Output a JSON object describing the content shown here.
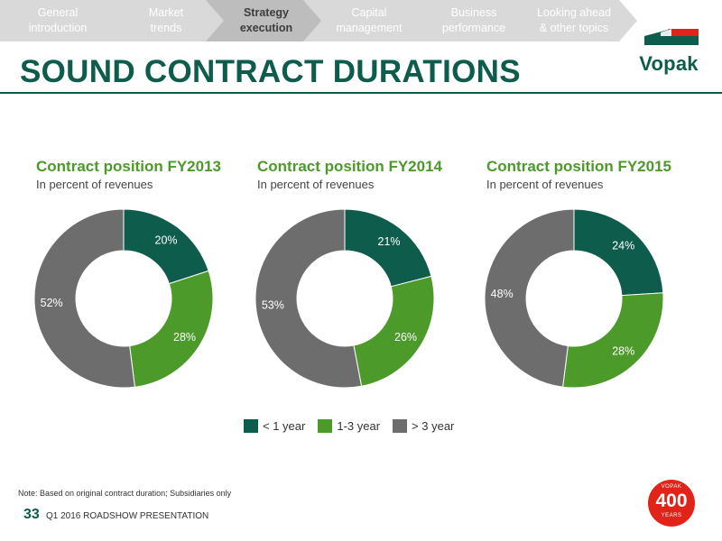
{
  "nav": {
    "items": [
      {
        "label": "General\nintroduction",
        "active": false
      },
      {
        "label": "Market\ntrends",
        "active": false
      },
      {
        "label": "Strategy\nexecution",
        "active": true
      },
      {
        "label": "Capital\nmanagement",
        "active": false
      },
      {
        "label": "Business\nperformance",
        "active": false
      },
      {
        "label": "Looking ahead\n& other topics",
        "active": false
      }
    ]
  },
  "page_title": "SOUND CONTRACT DURATIONS",
  "logo": {
    "word": "Vopak"
  },
  "colors": {
    "brand_green": "#0e5c4c",
    "accent_green": "#4c9a2a",
    "gray": "#6d6d6d",
    "badge_red": "#e2231a"
  },
  "legend": [
    {
      "label": "< 1 year",
      "color": "#0e5c4c"
    },
    {
      "label": "1-3 year",
      "color": "#4c9a2a"
    },
    {
      "label": "> 3 year",
      "color": "#6d6d6d"
    }
  ],
  "chart_data": [
    {
      "type": "pie",
      "title": "Contract position FY2013",
      "subtitle": "In percent of revenues",
      "categories": [
        "< 1 year",
        "1-3 year",
        "> 3 year"
      ],
      "values": [
        20,
        28,
        52
      ],
      "labels": [
        "20%",
        "28%",
        "52%"
      ],
      "colors": [
        "#0e5c4c",
        "#4c9a2a",
        "#6d6d6d"
      ]
    },
    {
      "type": "pie",
      "title": "Contract position FY2014",
      "subtitle": "In percent of revenues",
      "categories": [
        "< 1 year",
        "1-3 year",
        "> 3 year"
      ],
      "values": [
        21,
        26,
        53
      ],
      "labels": [
        "21%",
        "26%",
        "53%"
      ],
      "colors": [
        "#0e5c4c",
        "#4c9a2a",
        "#6d6d6d"
      ]
    },
    {
      "type": "pie",
      "title": "Contract position FY2015",
      "subtitle": "In percent of revenues",
      "categories": [
        "< 1 year",
        "1-3 year",
        "> 3 year"
      ],
      "values": [
        24,
        28,
        48
      ],
      "labels": [
        "24%",
        "28%",
        "48%"
      ],
      "colors": [
        "#0e5c4c",
        "#4c9a2a",
        "#6d6d6d"
      ]
    }
  ],
  "footer": {
    "note": "Note: Based on original contract duration; Subsidiaries only",
    "page_number": "33",
    "text": "Q1 2016 ROADSHOW PRESENTATION"
  },
  "badge": {
    "top": "VOPAK",
    "number": "400",
    "bottom": "YEARS"
  }
}
